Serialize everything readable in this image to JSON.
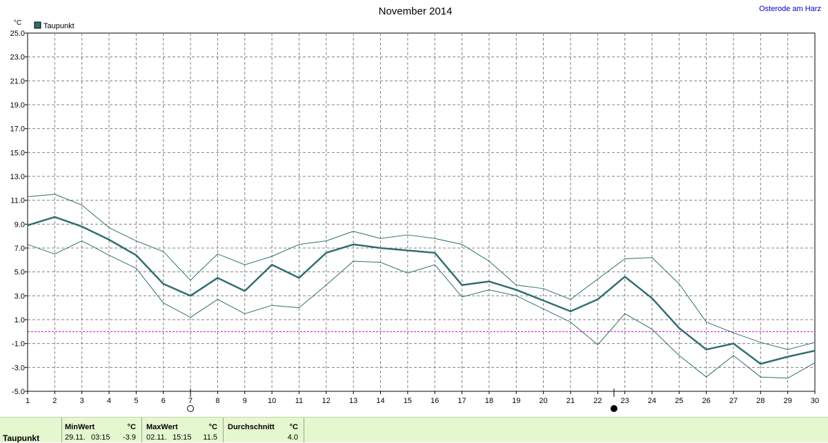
{
  "header": {
    "title": "November 2014",
    "location": "Osterode am Harz"
  },
  "chart_data": {
    "type": "line",
    "title": "November 2014",
    "ylabel": "°C",
    "xlabel": "",
    "ylim": [
      -5.0,
      25.0
    ],
    "yticks": [
      "25.0",
      "23.0",
      "21.0",
      "19.0",
      "17.0",
      "15.0",
      "13.0",
      "11.0",
      "9.0",
      "7.0",
      "5.0",
      "3.0",
      "1.0",
      "-1.0",
      "-3.0",
      "-5.0"
    ],
    "x": [
      1,
      2,
      3,
      4,
      5,
      6,
      7,
      8,
      9,
      10,
      11,
      12,
      13,
      14,
      15,
      16,
      17,
      18,
      19,
      20,
      21,
      22,
      23,
      24,
      25,
      26,
      27,
      28,
      29,
      30
    ],
    "grid": true,
    "legend": {
      "placement": "top-left",
      "entries": [
        "Taupunkt"
      ]
    },
    "zero_line": 0,
    "series": [
      {
        "name": "Taupunkt",
        "role": "mean",
        "values": [
          8.9,
          9.6,
          8.8,
          7.7,
          6.4,
          4.0,
          3.0,
          4.5,
          3.4,
          5.6,
          4.5,
          6.6,
          7.3,
          7.0,
          6.8,
          6.6,
          3.9,
          4.2,
          3.5,
          2.6,
          1.7,
          2.7,
          4.6,
          2.8,
          0.3,
          -1.5,
          -1.0,
          -2.7,
          -2.1,
          -1.6
        ],
        "color": "#2f6e6e"
      },
      {
        "role": "max",
        "values": [
          11.3,
          11.5,
          10.6,
          8.7,
          7.6,
          6.7,
          4.3,
          6.5,
          5.6,
          6.3,
          7.3,
          7.6,
          8.4,
          7.8,
          8.1,
          7.8,
          7.3,
          5.9,
          3.9,
          3.6,
          2.7,
          4.4,
          6.1,
          6.2,
          4.0,
          0.8,
          -0.1,
          -0.9,
          -1.5,
          -0.9
        ],
        "color": "#2f6e6e"
      },
      {
        "role": "min",
        "values": [
          7.3,
          6.5,
          7.6,
          6.4,
          5.3,
          2.4,
          1.2,
          2.7,
          1.5,
          2.2,
          2.0,
          3.9,
          5.9,
          5.8,
          4.9,
          5.6,
          2.9,
          3.5,
          3.0,
          1.9,
          0.8,
          -1.1,
          1.5,
          0.2,
          -2.0,
          -3.8,
          -2.0,
          -3.8,
          -3.9,
          -2.6
        ],
        "color": "#2f6e6e"
      }
    ],
    "annotations": [
      {
        "day": 7,
        "marker": "full-moon"
      },
      {
        "day": 22.6,
        "marker": "new-moon"
      }
    ]
  },
  "footer": {
    "row_label": "Taupunkt",
    "min_header": "MinWert",
    "min_unit": "°C",
    "min_date": "29.11.",
    "min_time": "03:15",
    "min_value": "-3.9",
    "max_header": "MaxWert",
    "max_unit": "°C",
    "max_date": "02.11.",
    "max_time": "15:15",
    "max_value": "11.5",
    "avg_header": "Durchschnitt",
    "avg_unit": "°C",
    "avg_value": "4.0"
  }
}
